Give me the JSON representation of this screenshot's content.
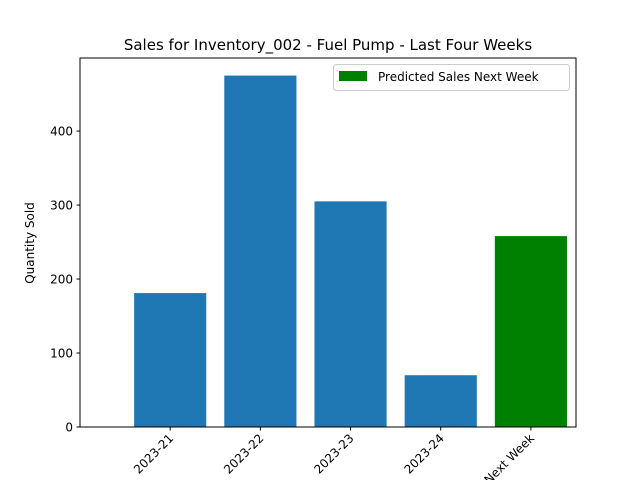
{
  "chart_data": {
    "type": "bar",
    "title": "Sales for Inventory_002 - Fuel Pump - Last Four Weeks",
    "xlabel": "",
    "ylabel": "Quantity Sold",
    "categories": [
      "2023-21",
      "2023-22",
      "2023-23",
      "2023-24",
      "Next Week"
    ],
    "values": [
      181,
      475,
      305,
      70,
      258
    ],
    "bar_colors": [
      "#1f77b4",
      "#1f77b4",
      "#1f77b4",
      "#1f77b4",
      "#008000"
    ],
    "ylim": [
      0,
      498.75
    ],
    "yticks": [
      0,
      100,
      200,
      300,
      400
    ],
    "ytick_labels": [
      "0",
      "100",
      "200",
      "300",
      "400"
    ],
    "grid": false,
    "legend": {
      "placement": "top-right",
      "entries": [
        {
          "label": "Predicted Sales Next Week",
          "color": "#008000"
        }
      ]
    }
  }
}
